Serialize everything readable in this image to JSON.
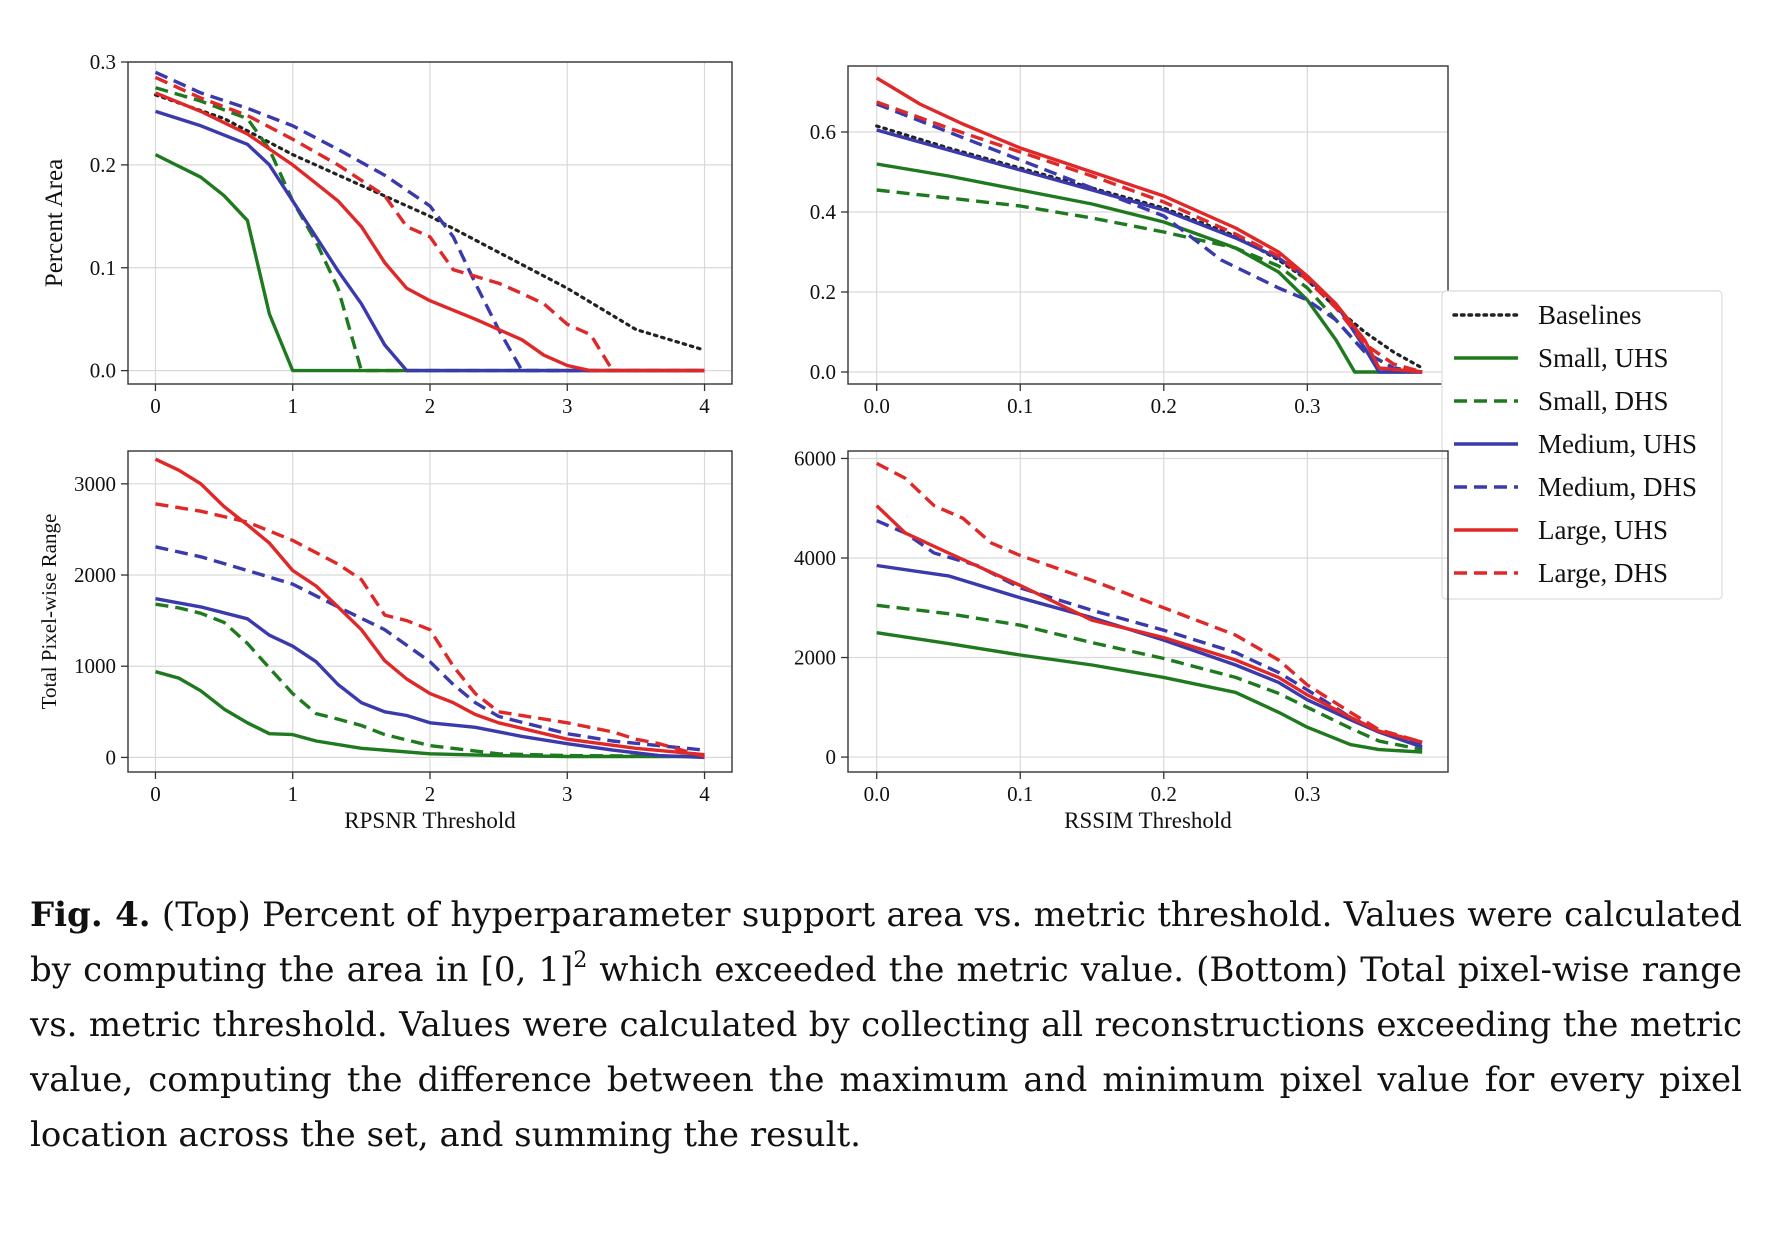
{
  "series_styles": [
    {
      "name": "Baselines",
      "color": "#222222",
      "dash": "dotted"
    },
    {
      "name": "Small, UHS",
      "color": "#1f7a1f",
      "dash": "solid"
    },
    {
      "name": "Small, DHS",
      "color": "#1f7a1f",
      "dash": "dashed"
    },
    {
      "name": "Medium, UHS",
      "color": "#3a3aad",
      "dash": "solid"
    },
    {
      "name": "Medium, DHS",
      "color": "#3a3aad",
      "dash": "dashed"
    },
    {
      "name": "Large, UHS",
      "color": "#e02828",
      "dash": "solid"
    },
    {
      "name": "Large, DHS",
      "color": "#e02828",
      "dash": "dashed"
    }
  ],
  "chart_data": [
    {
      "type": "line",
      "panel": "top-left",
      "xlabel": "",
      "ylabel": "Percent Area",
      "xlim": [
        -0.2,
        4.2
      ],
      "ylim": [
        -0.013,
        0.3
      ],
      "xticks": [
        0,
        1,
        2,
        3,
        4
      ],
      "yticks": [
        0.0,
        0.1,
        0.2,
        0.3
      ],
      "yfmt": 1,
      "grid": true,
      "series": [
        {
          "name": "Baselines",
          "x": [
            0,
            0.5,
            1,
            1.5,
            2,
            2.5,
            3,
            3.5,
            4
          ],
          "y": [
            0.268,
            0.245,
            0.21,
            0.18,
            0.15,
            0.115,
            0.08,
            0.04,
            0.02
          ]
        },
        {
          "name": "Small, UHS",
          "x": [
            0,
            0.15,
            0.33,
            0.5,
            0.67,
            0.83,
            1.0,
            1.5,
            2,
            3,
            4
          ],
          "y": [
            0.21,
            0.2,
            0.188,
            0.17,
            0.146,
            0.055,
            0.0,
            0.0,
            0.0,
            0.0,
            0.0
          ]
        },
        {
          "name": "Small, DHS",
          "x": [
            0,
            0.33,
            0.67,
            0.83,
            1.0,
            1.17,
            1.33,
            1.5,
            2,
            3,
            4
          ],
          "y": [
            0.275,
            0.262,
            0.245,
            0.215,
            0.165,
            0.125,
            0.08,
            0.0,
            0.0,
            0.0,
            0.0
          ]
        },
        {
          "name": "Medium, UHS",
          "x": [
            0,
            0.33,
            0.67,
            0.83,
            1.0,
            1.17,
            1.33,
            1.5,
            1.67,
            1.83,
            2,
            3,
            4
          ],
          "y": [
            0.252,
            0.238,
            0.22,
            0.2,
            0.165,
            0.13,
            0.097,
            0.065,
            0.025,
            0.0,
            0.0,
            0.0,
            0.0
          ]
        },
        {
          "name": "Medium, DHS",
          "x": [
            0,
            0.33,
            0.67,
            1.0,
            1.33,
            1.67,
            2.0,
            2.17,
            2.33,
            2.5,
            2.67,
            3,
            4
          ],
          "y": [
            0.29,
            0.27,
            0.255,
            0.238,
            0.215,
            0.19,
            0.16,
            0.13,
            0.085,
            0.04,
            0.0,
            0.0,
            0.0
          ]
        },
        {
          "name": "Large, UHS",
          "x": [
            0,
            0.33,
            0.67,
            1.0,
            1.17,
            1.33,
            1.5,
            1.67,
            1.83,
            2.0,
            2.33,
            2.67,
            2.83,
            3.0,
            3.17,
            4
          ],
          "y": [
            0.27,
            0.252,
            0.23,
            0.2,
            0.182,
            0.165,
            0.14,
            0.105,
            0.08,
            0.068,
            0.05,
            0.03,
            0.015,
            0.005,
            0.0,
            0.0
          ]
        },
        {
          "name": "Large, DHS",
          "x": [
            0,
            0.33,
            0.67,
            1.0,
            1.33,
            1.67,
            1.83,
            2.0,
            2.17,
            2.5,
            2.67,
            2.83,
            3.0,
            3.17,
            3.33,
            4
          ],
          "y": [
            0.285,
            0.265,
            0.248,
            0.225,
            0.2,
            0.17,
            0.14,
            0.13,
            0.098,
            0.085,
            0.075,
            0.065,
            0.045,
            0.035,
            0.0,
            0.0
          ]
        }
      ]
    },
    {
      "type": "line",
      "panel": "top-right",
      "xlabel": "",
      "ylabel": "",
      "xlim": [
        -0.02,
        0.398
      ],
      "ylim": [
        -0.03,
        0.765
      ],
      "xticks": [
        0.0,
        0.1,
        0.2,
        0.3
      ],
      "yticks": [
        0.0,
        0.2,
        0.4,
        0.6
      ],
      "yfmt": 1,
      "xfmt": 1,
      "grid": true,
      "legend": "right-outside",
      "series": [
        {
          "name": "Baselines",
          "x": [
            0,
            0.05,
            0.1,
            0.15,
            0.2,
            0.25,
            0.28,
            0.3,
            0.32,
            0.34,
            0.36,
            0.38
          ],
          "y": [
            0.615,
            0.56,
            0.51,
            0.46,
            0.41,
            0.34,
            0.28,
            0.23,
            0.16,
            0.1,
            0.05,
            0.01
          ]
        },
        {
          "name": "Small, UHS",
          "x": [
            0,
            0.05,
            0.1,
            0.15,
            0.2,
            0.25,
            0.28,
            0.3,
            0.32,
            0.333,
            0.35,
            0.38
          ],
          "y": [
            0.52,
            0.49,
            0.455,
            0.42,
            0.375,
            0.31,
            0.25,
            0.18,
            0.08,
            0.0,
            0.0,
            0.0
          ]
        },
        {
          "name": "Small, DHS",
          "x": [
            0,
            0.05,
            0.1,
            0.15,
            0.2,
            0.25,
            0.28,
            0.3,
            0.32,
            0.34,
            0.36,
            0.38
          ],
          "y": [
            0.455,
            0.435,
            0.415,
            0.385,
            0.35,
            0.31,
            0.265,
            0.21,
            0.13,
            0.05,
            0.01,
            0.0
          ]
        },
        {
          "name": "Medium, UHS",
          "x": [
            0,
            0.05,
            0.1,
            0.15,
            0.2,
            0.25,
            0.28,
            0.3,
            0.32,
            0.34,
            0.35,
            0.38
          ],
          "y": [
            0.605,
            0.555,
            0.505,
            0.455,
            0.405,
            0.335,
            0.285,
            0.235,
            0.17,
            0.06,
            0.0,
            0.0
          ]
        },
        {
          "name": "Medium, DHS",
          "x": [
            0,
            0.05,
            0.1,
            0.15,
            0.2,
            0.24,
            0.28,
            0.3,
            0.32,
            0.34,
            0.36,
            0.38
          ],
          "y": [
            0.67,
            0.6,
            0.53,
            0.46,
            0.39,
            0.28,
            0.21,
            0.18,
            0.13,
            0.05,
            0.01,
            0.0
          ]
        },
        {
          "name": "Large, UHS",
          "x": [
            0,
            0.03,
            0.06,
            0.1,
            0.15,
            0.2,
            0.25,
            0.28,
            0.3,
            0.32,
            0.34,
            0.35,
            0.38
          ],
          "y": [
            0.735,
            0.67,
            0.62,
            0.56,
            0.5,
            0.44,
            0.36,
            0.3,
            0.24,
            0.17,
            0.08,
            0.01,
            0.0
          ]
        },
        {
          "name": "Large, DHS",
          "x": [
            0,
            0.05,
            0.1,
            0.15,
            0.2,
            0.25,
            0.28,
            0.3,
            0.32,
            0.34,
            0.36,
            0.38
          ],
          "y": [
            0.675,
            0.61,
            0.55,
            0.49,
            0.425,
            0.345,
            0.29,
            0.23,
            0.16,
            0.07,
            0.02,
            0.0
          ]
        }
      ]
    },
    {
      "type": "line",
      "panel": "bottom-left",
      "xlabel": "RPSNR Threshold",
      "ylabel": "Total Pixel-wise Range",
      "xlim": [
        -0.2,
        4.2
      ],
      "ylim": [
        -160,
        3360
      ],
      "xticks": [
        0,
        1,
        2,
        3,
        4
      ],
      "yticks": [
        0,
        1000,
        2000,
        3000
      ],
      "yfmt": 0,
      "grid": true,
      "series": [
        {
          "name": "Small, UHS",
          "x": [
            0,
            0.17,
            0.33,
            0.5,
            0.67,
            0.83,
            1.0,
            1.17,
            1.5,
            2.0,
            2.5,
            3.0,
            4.0
          ],
          "y": [
            940,
            870,
            730,
            530,
            380,
            260,
            250,
            180,
            100,
            40,
            20,
            10,
            10
          ]
        },
        {
          "name": "Small, DHS",
          "x": [
            0,
            0.17,
            0.33,
            0.5,
            0.67,
            0.83,
            1.0,
            1.17,
            1.33,
            1.5,
            1.67,
            2.0,
            2.5,
            3.0,
            4.0
          ],
          "y": [
            1680,
            1640,
            1580,
            1480,
            1250,
            980,
            700,
            480,
            420,
            350,
            250,
            130,
            40,
            20,
            10
          ]
        },
        {
          "name": "Medium, UHS",
          "x": [
            0,
            0.33,
            0.67,
            0.83,
            1.0,
            1.17,
            1.33,
            1.5,
            1.67,
            1.83,
            2.0,
            2.33,
            2.67,
            3.0,
            3.33,
            3.5,
            3.67,
            4.0
          ],
          "y": [
            1740,
            1650,
            1520,
            1340,
            1220,
            1050,
            800,
            600,
            500,
            460,
            380,
            330,
            230,
            150,
            80,
            50,
            20,
            0
          ]
        },
        {
          "name": "Medium, DHS",
          "x": [
            0,
            0.33,
            0.67,
            1.0,
            1.33,
            1.67,
            2.0,
            2.17,
            2.33,
            2.5,
            3.0,
            3.33,
            4.0
          ],
          "y": [
            2310,
            2200,
            2050,
            1900,
            1650,
            1400,
            1050,
            800,
            600,
            450,
            260,
            180,
            80
          ]
        },
        {
          "name": "Large, UHS",
          "x": [
            0,
            0.17,
            0.33,
            0.5,
            0.67,
            0.83,
            1.0,
            1.17,
            1.33,
            1.5,
            1.67,
            1.83,
            2.0,
            2.17,
            2.33,
            2.5,
            3.0,
            3.5,
            4.0
          ],
          "y": [
            3270,
            3150,
            3000,
            2750,
            2550,
            2350,
            2050,
            1880,
            1650,
            1400,
            1060,
            860,
            700,
            600,
            470,
            380,
            200,
            100,
            30
          ]
        },
        {
          "name": "Large, DHS",
          "x": [
            0,
            0.33,
            0.67,
            1.0,
            1.33,
            1.5,
            1.67,
            1.83,
            2.0,
            2.17,
            2.33,
            2.5,
            3.0,
            3.33,
            3.5,
            3.67,
            4.0
          ],
          "y": [
            2780,
            2700,
            2580,
            2380,
            2120,
            1950,
            1560,
            1500,
            1400,
            1000,
            700,
            500,
            380,
            280,
            200,
            150,
            10
          ]
        }
      ]
    },
    {
      "type": "line",
      "panel": "bottom-right",
      "xlabel": "RSSIM Threshold",
      "ylabel": "",
      "xlim": [
        -0.02,
        0.398
      ],
      "ylim": [
        -300,
        6150
      ],
      "xticks": [
        0.0,
        0.1,
        0.2,
        0.3
      ],
      "yticks": [
        0,
        2000,
        4000,
        6000
      ],
      "yfmt": 0,
      "xfmt": 1,
      "grid": true,
      "series": [
        {
          "name": "Small, UHS",
          "x": [
            0,
            0.05,
            0.1,
            0.15,
            0.2,
            0.25,
            0.28,
            0.3,
            0.33,
            0.35,
            0.38
          ],
          "y": [
            2500,
            2280,
            2050,
            1850,
            1600,
            1300,
            900,
            600,
            250,
            150,
            100
          ]
        },
        {
          "name": "Small, DHS",
          "x": [
            0,
            0.05,
            0.1,
            0.15,
            0.2,
            0.25,
            0.28,
            0.3,
            0.33,
            0.35,
            0.38
          ],
          "y": [
            3050,
            2880,
            2650,
            2300,
            1980,
            1600,
            1280,
            1000,
            580,
            320,
            150
          ]
        },
        {
          "name": "Medium, UHS",
          "x": [
            0,
            0.05,
            0.1,
            0.15,
            0.2,
            0.25,
            0.28,
            0.3,
            0.33,
            0.35,
            0.38
          ],
          "y": [
            3850,
            3640,
            3200,
            2800,
            2350,
            1850,
            1500,
            1150,
            750,
            500,
            200
          ]
        },
        {
          "name": "Medium, DHS",
          "x": [
            0,
            0.02,
            0.04,
            0.07,
            0.1,
            0.15,
            0.2,
            0.25,
            0.28,
            0.3,
            0.33,
            0.35,
            0.38
          ],
          "y": [
            4750,
            4500,
            4100,
            3850,
            3400,
            2950,
            2550,
            2100,
            1700,
            1350,
            800,
            520,
            260
          ]
        },
        {
          "name": "Large, UHS",
          "x": [
            0,
            0.02,
            0.05,
            0.1,
            0.15,
            0.2,
            0.25,
            0.28,
            0.3,
            0.33,
            0.35,
            0.38
          ],
          "y": [
            5050,
            4500,
            4100,
            3450,
            2750,
            2400,
            1950,
            1600,
            1250,
            800,
            520,
            300
          ]
        },
        {
          "name": "Large, DHS",
          "x": [
            0,
            0.02,
            0.04,
            0.06,
            0.08,
            0.1,
            0.15,
            0.2,
            0.25,
            0.28,
            0.3,
            0.33,
            0.35,
            0.38
          ],
          "y": [
            5900,
            5600,
            5050,
            4800,
            4300,
            4050,
            3550,
            3000,
            2450,
            1950,
            1450,
            900,
            550,
            300
          ]
        }
      ]
    }
  ],
  "caption": {
    "label": "Fig. 4.",
    "text_before_math": " (Top) Percent of hyperparameter support area vs. metric threshold. Values were calculated by computing the area in ",
    "math_base": "[0, 1]",
    "math_sup": "2",
    "text_after_math": " which exceeded the metric value. (Bottom) Total pixel-wise range vs. metric threshold. Values were calculated by collecting all reconstructions exceeding the metric value, computing the difference between the maximum and minimum pixel value for every pixel location across the set, and summing the result."
  }
}
